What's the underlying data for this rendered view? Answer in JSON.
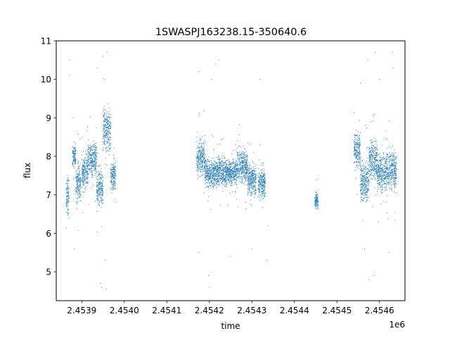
{
  "chart_data": {
    "type": "scatter",
    "title": "1SWASPJ163238.15-350640.6",
    "xlabel": "time",
    "ylabel": "flux",
    "x_offset_label": "1e6",
    "xlim": [
      2453840,
      2454660
    ],
    "ylim": [
      4.25,
      11
    ],
    "x_ticks": [
      2453900,
      2454000,
      2454100,
      2454200,
      2454300,
      2454400,
      2454500,
      2454600
    ],
    "x_tick_labels": [
      "2.4539",
      "2.4540",
      "2.4541",
      "2.4542",
      "2.4543",
      "2.4544",
      "2.4545",
      "2.4546"
    ],
    "y_ticks": [
      5,
      6,
      7,
      8,
      9,
      10,
      11
    ],
    "y_tick_labels": [
      "5",
      "6",
      "7",
      "8",
      "9",
      "10",
      "11"
    ],
    "grid": false,
    "marker_color": "#1f77b4",
    "series": [
      {
        "segments": [
          {
            "t0": 2453863,
            "t1": 2453870,
            "lo": 6.4,
            "hi": 7.6
          },
          {
            "t0": 2453878,
            "t1": 2453886,
            "lo": 7.6,
            "hi": 8.4
          },
          {
            "t0": 2453886,
            "t1": 2453898,
            "lo": 6.7,
            "hi": 7.9
          },
          {
            "t0": 2453900,
            "t1": 2453915,
            "lo": 7.0,
            "hi": 8.2
          },
          {
            "t0": 2453915,
            "t1": 2453935,
            "lo": 7.4,
            "hi": 8.5
          },
          {
            "t0": 2453935,
            "t1": 2453950,
            "lo": 6.6,
            "hi": 7.8
          },
          {
            "t0": 2453950,
            "t1": 2453968,
            "lo": 8.0,
            "hi": 9.4
          },
          {
            "t0": 2453968,
            "t1": 2453980,
            "lo": 7.0,
            "hi": 8.0
          },
          {
            "t0": 2454170,
            "t1": 2454190,
            "lo": 7.4,
            "hi": 8.5
          },
          {
            "t0": 2454190,
            "t1": 2454215,
            "lo": 7.1,
            "hi": 8.0
          },
          {
            "t0": 2454215,
            "t1": 2454240,
            "lo": 7.1,
            "hi": 8.1
          },
          {
            "t0": 2454240,
            "t1": 2454265,
            "lo": 7.2,
            "hi": 8.0
          },
          {
            "t0": 2454265,
            "t1": 2454290,
            "lo": 7.2,
            "hi": 8.3
          },
          {
            "t0": 2454290,
            "t1": 2454310,
            "lo": 6.9,
            "hi": 7.9
          },
          {
            "t0": 2454315,
            "t1": 2454332,
            "lo": 6.8,
            "hi": 7.8
          },
          {
            "t0": 2454448,
            "t1": 2454456,
            "lo": 6.6,
            "hi": 7.1
          },
          {
            "t0": 2454540,
            "t1": 2454555,
            "lo": 7.6,
            "hi": 8.7
          },
          {
            "t0": 2454555,
            "t1": 2454575,
            "lo": 6.7,
            "hi": 8.0
          },
          {
            "t0": 2454575,
            "t1": 2454595,
            "lo": 7.2,
            "hi": 8.6
          },
          {
            "t0": 2454595,
            "t1": 2454618,
            "lo": 7.0,
            "hi": 8.2
          },
          {
            "t0": 2454618,
            "t1": 2454640,
            "lo": 7.0,
            "hi": 8.3
          }
        ],
        "outliers": [
          [
            2453872,
            10.5
          ],
          [
            2453880,
            9.0
          ],
          [
            2453883,
            5.6
          ],
          [
            2453872,
            10.1
          ],
          [
            2453950,
            10.6
          ],
          [
            2453945,
            4.7
          ],
          [
            2453947,
            4.6
          ],
          [
            2453958,
            4.55
          ],
          [
            2453937,
            10.3
          ],
          [
            2453960,
            10.7
          ],
          [
            2453955,
            5.3
          ],
          [
            2453980,
            6.8
          ],
          [
            2454175,
            5.5
          ],
          [
            2454176,
            10.2
          ],
          [
            2454200,
            4.6
          ],
          [
            2454198,
            4.9
          ],
          [
            2454215,
            10.4
          ],
          [
            2454222,
            10.5
          ],
          [
            2454250,
            5.4
          ],
          [
            2454300,
            5.6
          ],
          [
            2454335,
            5.3
          ],
          [
            2454338,
            6.2
          ],
          [
            2454320,
            10.0
          ],
          [
            2454205,
            10.0
          ],
          [
            2454590,
            10.7
          ],
          [
            2454573,
            10.5
          ],
          [
            2454575,
            4.8
          ],
          [
            2454588,
            4.9
          ],
          [
            2454630,
            10.7
          ],
          [
            2454632,
            10.3
          ],
          [
            2454622,
            5.5
          ],
          [
            2454565,
            5.6
          ],
          [
            2454555,
            9.9
          ],
          [
            2454600,
            10.0
          ],
          [
            2454450,
            6.8
          ],
          [
            2454453,
            7.0
          ]
        ]
      }
    ]
  }
}
